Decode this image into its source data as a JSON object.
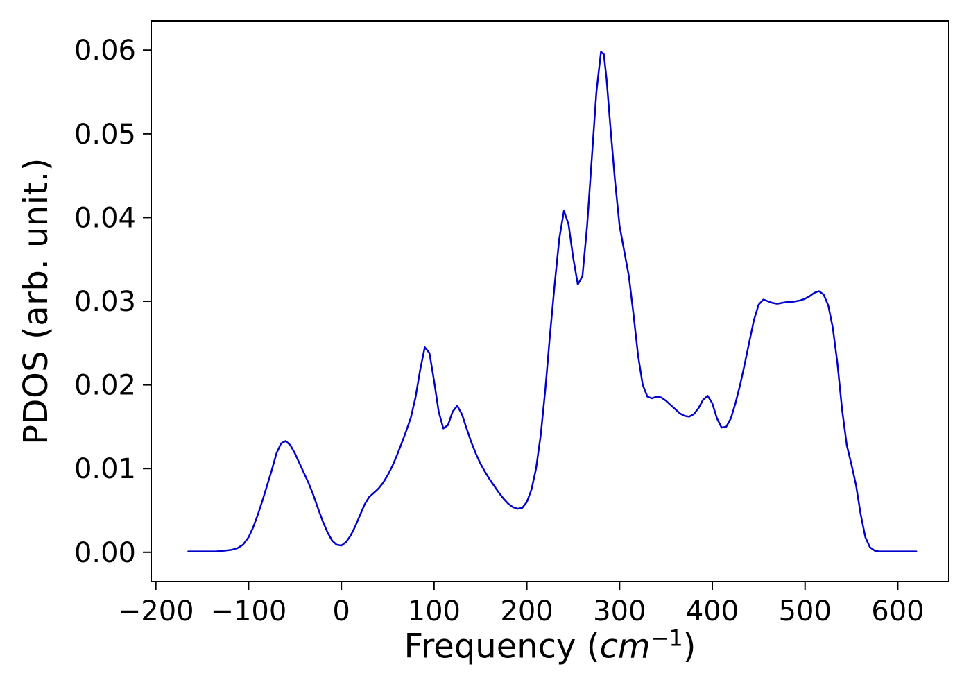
{
  "labels": {
    "ylabel": "PDOS (arb. unit.)",
    "xlabel_prefix": "Frequency (",
    "xlabel_math": "cm",
    "xlabel_sup": "−1",
    "xlabel_suffix": ")"
  },
  "chart_data": {
    "type": "line",
    "title": "",
    "xlabel": "Frequency (cm⁻¹)",
    "ylabel": "PDOS (arb. unit.)",
    "xlim": [
      -205,
      655
    ],
    "ylim": [
      -0.0035,
      0.0635
    ],
    "grid": false,
    "legend": "none",
    "xticks": {
      "values": [
        -200,
        -100,
        0,
        100,
        200,
        300,
        400,
        500,
        600
      ],
      "labels": [
        "−200",
        "−100",
        "0",
        "100",
        "200",
        "300",
        "400",
        "500",
        "600"
      ]
    },
    "yticks": {
      "values": [
        0.0,
        0.01,
        0.02,
        0.03,
        0.04,
        0.05,
        0.06
      ],
      "labels": [
        "0.00",
        "0.01",
        "0.02",
        "0.03",
        "0.04",
        "0.05",
        "0.06"
      ]
    },
    "series": [
      {
        "name": "PDOS",
        "color": "#0000cd",
        "line_width": 2.5,
        "points": [
          [
            -165,
            0.0001
          ],
          [
            -155,
            0.0001
          ],
          [
            -145,
            0.0001
          ],
          [
            -135,
            0.0001
          ],
          [
            -125,
            0.0002
          ],
          [
            -118,
            0.0003
          ],
          [
            -112,
            0.0005
          ],
          [
            -106,
            0.0009
          ],
          [
            -100,
            0.0018
          ],
          [
            -95,
            0.003
          ],
          [
            -90,
            0.0045
          ],
          [
            -85,
            0.0062
          ],
          [
            -80,
            0.008
          ],
          [
            -75,
            0.0098
          ],
          [
            -70,
            0.0118
          ],
          [
            -65,
            0.013
          ],
          [
            -60,
            0.0133
          ],
          [
            -55,
            0.0128
          ],
          [
            -50,
            0.0118
          ],
          [
            -45,
            0.0106
          ],
          [
            -40,
            0.0094
          ],
          [
            -35,
            0.0082
          ],
          [
            -30,
            0.0068
          ],
          [
            -25,
            0.0052
          ],
          [
            -20,
            0.0037
          ],
          [
            -15,
            0.0024
          ],
          [
            -10,
            0.0014
          ],
          [
            -5,
            0.0009
          ],
          [
            0,
            0.0008
          ],
          [
            5,
            0.0012
          ],
          [
            10,
            0.002
          ],
          [
            15,
            0.0031
          ],
          [
            20,
            0.0044
          ],
          [
            25,
            0.0057
          ],
          [
            30,
            0.0066
          ],
          [
            35,
            0.0071
          ],
          [
            40,
            0.0076
          ],
          [
            45,
            0.0083
          ],
          [
            50,
            0.0092
          ],
          [
            55,
            0.0103
          ],
          [
            60,
            0.0116
          ],
          [
            65,
            0.013
          ],
          [
            70,
            0.0145
          ],
          [
            75,
            0.0161
          ],
          [
            80,
            0.0185
          ],
          [
            85,
            0.0218
          ],
          [
            90,
            0.0245
          ],
          [
            95,
            0.0238
          ],
          [
            100,
            0.0205
          ],
          [
            105,
            0.0168
          ],
          [
            110,
            0.0148
          ],
          [
            115,
            0.0152
          ],
          [
            120,
            0.0168
          ],
          [
            125,
            0.0175
          ],
          [
            130,
            0.0165
          ],
          [
            135,
            0.0148
          ],
          [
            140,
            0.0132
          ],
          [
            145,
            0.0118
          ],
          [
            150,
            0.0106
          ],
          [
            155,
            0.0096
          ],
          [
            160,
            0.0087
          ],
          [
            165,
            0.0079
          ],
          [
            170,
            0.0071
          ],
          [
            175,
            0.0064
          ],
          [
            180,
            0.0058
          ],
          [
            185,
            0.0054
          ],
          [
            190,
            0.0052
          ],
          [
            195,
            0.0053
          ],
          [
            200,
            0.006
          ],
          [
            205,
            0.0075
          ],
          [
            210,
            0.01
          ],
          [
            215,
            0.014
          ],
          [
            220,
            0.0195
          ],
          [
            225,
            0.026
          ],
          [
            230,
            0.032
          ],
          [
            235,
            0.0375
          ],
          [
            240,
            0.0408
          ],
          [
            245,
            0.0392
          ],
          [
            250,
            0.0352
          ],
          [
            255,
            0.032
          ],
          [
            260,
            0.033
          ],
          [
            265,
            0.039
          ],
          [
            270,
            0.047
          ],
          [
            275,
            0.055
          ],
          [
            280,
            0.0598
          ],
          [
            283,
            0.0595
          ],
          [
            286,
            0.0565
          ],
          [
            290,
            0.051
          ],
          [
            295,
            0.0445
          ],
          [
            300,
            0.039
          ],
          [
            305,
            0.036
          ],
          [
            310,
            0.033
          ],
          [
            315,
            0.0285
          ],
          [
            320,
            0.0235
          ],
          [
            325,
            0.02
          ],
          [
            330,
            0.0186
          ],
          [
            335,
            0.0184
          ],
          [
            340,
            0.0186
          ],
          [
            345,
            0.0185
          ],
          [
            350,
            0.0181
          ],
          [
            355,
            0.0176
          ],
          [
            360,
            0.0171
          ],
          [
            365,
            0.0166
          ],
          [
            370,
            0.0163
          ],
          [
            375,
            0.0162
          ],
          [
            380,
            0.0165
          ],
          [
            385,
            0.0172
          ],
          [
            390,
            0.0182
          ],
          [
            395,
            0.0187
          ],
          [
            400,
            0.0178
          ],
          [
            405,
            0.016
          ],
          [
            410,
            0.0149
          ],
          [
            415,
            0.015
          ],
          [
            420,
            0.016
          ],
          [
            425,
            0.0178
          ],
          [
            430,
            0.02
          ],
          [
            435,
            0.0225
          ],
          [
            440,
            0.0252
          ],
          [
            445,
            0.0278
          ],
          [
            450,
            0.0296
          ],
          [
            455,
            0.0302
          ],
          [
            460,
            0.03
          ],
          [
            465,
            0.0298
          ],
          [
            470,
            0.0297
          ],
          [
            475,
            0.0298
          ],
          [
            480,
            0.0299
          ],
          [
            485,
            0.0299
          ],
          [
            490,
            0.03
          ],
          [
            495,
            0.0301
          ],
          [
            500,
            0.0303
          ],
          [
            505,
            0.0306
          ],
          [
            510,
            0.031
          ],
          [
            515,
            0.0312
          ],
          [
            520,
            0.0308
          ],
          [
            525,
            0.0295
          ],
          [
            530,
            0.0268
          ],
          [
            535,
            0.0225
          ],
          [
            540,
            0.017
          ],
          [
            545,
            0.0128
          ],
          [
            550,
            0.0105
          ],
          [
            555,
            0.008
          ],
          [
            560,
            0.0045
          ],
          [
            565,
            0.0018
          ],
          [
            570,
            0.0006
          ],
          [
            575,
            0.0002
          ],
          [
            580,
            0.0001
          ],
          [
            590,
            0.0001
          ],
          [
            600,
            0.0001
          ],
          [
            610,
            0.0001
          ],
          [
            620,
            0.0001
          ]
        ]
      }
    ]
  }
}
